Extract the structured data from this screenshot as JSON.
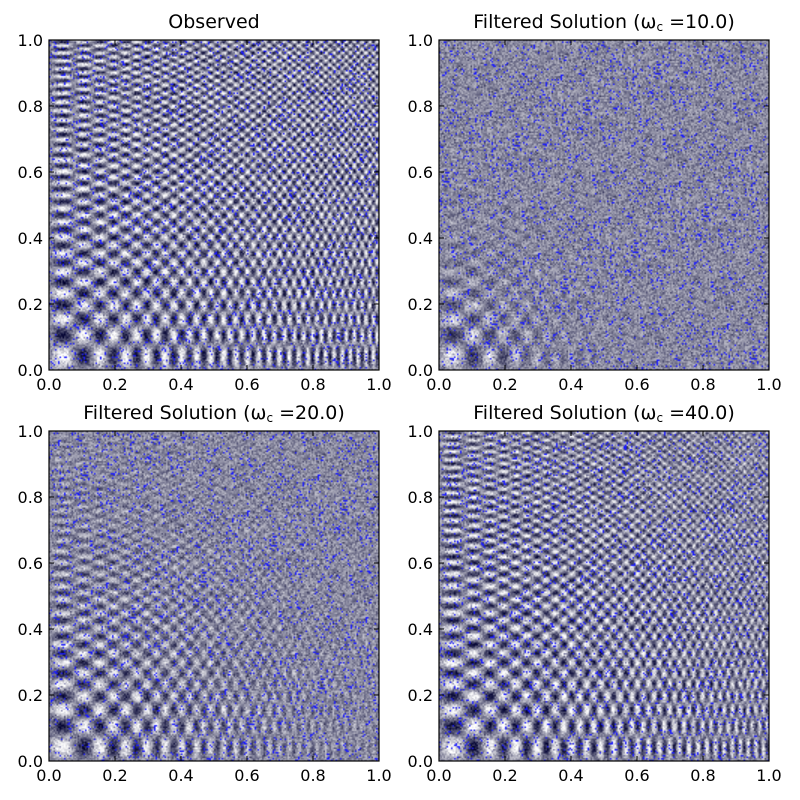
{
  "chart_data": [
    {
      "type": "heatmap",
      "title": "Observed",
      "title_subscript": "",
      "title_suffix": "",
      "xlim": [
        0.0,
        1.0
      ],
      "ylim": [
        0.0,
        1.0
      ],
      "xticks": [
        "0.0",
        "0.2",
        "0.4",
        "0.6",
        "0.8",
        "1.0"
      ],
      "yticks": [
        "0.0",
        "0.2",
        "0.4",
        "0.6",
        "0.8",
        "1.0"
      ],
      "cutoff": null,
      "colormap": [
        "#000030",
        "#ffffff"
      ],
      "noise_color": "#1a1aff"
    },
    {
      "type": "heatmap",
      "title": "Filtered Solution (ω",
      "title_subscript": "c",
      "title_suffix": " =10.0)",
      "xlim": [
        0.0,
        1.0
      ],
      "ylim": [
        0.0,
        1.0
      ],
      "xticks": [
        "0.0",
        "0.2",
        "0.4",
        "0.6",
        "0.8",
        "1.0"
      ],
      "yticks": [
        "0.0",
        "0.2",
        "0.4",
        "0.6",
        "0.8",
        "1.0"
      ],
      "cutoff": 10.0,
      "colormap": [
        "#000030",
        "#ffffff"
      ],
      "noise_color": "#1a1aff"
    },
    {
      "type": "heatmap",
      "title": "Filtered Solution (ω",
      "title_subscript": "c",
      "title_suffix": " =20.0)",
      "xlim": [
        0.0,
        1.0
      ],
      "ylim": [
        0.0,
        1.0
      ],
      "xticks": [
        "0.0",
        "0.2",
        "0.4",
        "0.6",
        "0.8",
        "1.0"
      ],
      "yticks": [
        "0.0",
        "0.2",
        "0.4",
        "0.6",
        "0.8",
        "1.0"
      ],
      "cutoff": 20.0,
      "colormap": [
        "#000030",
        "#ffffff"
      ],
      "noise_color": "#1a1aff"
    },
    {
      "type": "heatmap",
      "title": "Filtered Solution (ω",
      "title_subscript": "c",
      "title_suffix": " =40.0)",
      "xlim": [
        0.0,
        1.0
      ],
      "ylim": [
        0.0,
        1.0
      ],
      "xticks": [
        "0.0",
        "0.2",
        "0.4",
        "0.6",
        "0.8",
        "1.0"
      ],
      "yticks": [
        "0.0",
        "0.2",
        "0.4",
        "0.6",
        "0.8",
        "1.0"
      ],
      "cutoff": 40.0,
      "colormap": [
        "#000030",
        "#ffffff"
      ],
      "noise_color": "#1a1aff"
    }
  ]
}
